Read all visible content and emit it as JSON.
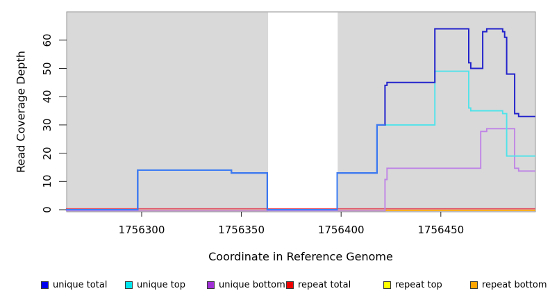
{
  "chart_data": {
    "type": "step-line",
    "title": "",
    "xlabel": "Coordinate in Reference Genome",
    "ylabel": "Read Coverage Depth",
    "x_ticks": [
      "1756300",
      "1756350",
      "1756400",
      "1756450"
    ],
    "x_tick_values": [
      1756300,
      1756350,
      1756400,
      1756450
    ],
    "y_ticks": [
      "0",
      "10",
      "20",
      "30",
      "40",
      "50",
      "60"
    ],
    "y_tick_values": [
      0,
      10,
      20,
      30,
      40,
      50,
      60
    ],
    "xlim": [
      1756262,
      1756497
    ],
    "ylim": [
      0,
      70
    ],
    "grid": false,
    "panel_bg": "#D9D9D9",
    "panel_border": "#969696",
    "gap_region": {
      "x_start": 1756363.4,
      "x_end": 1756398.3,
      "color": "#FFFFFF"
    },
    "series": [
      {
        "id": "unique_total",
        "name": "unique total",
        "line_color": "#2323CC",
        "steps": [
          [
            1756262,
            0
          ],
          [
            1756298,
            14
          ],
          [
            1756345,
            13
          ],
          [
            1756363,
            0
          ],
          [
            1756398,
            13
          ],
          [
            1756418,
            30
          ],
          [
            1756422,
            44
          ],
          [
            1756423,
            45
          ],
          [
            1756447,
            64
          ],
          [
            1756464,
            52
          ],
          [
            1756465,
            50
          ],
          [
            1756471,
            63
          ],
          [
            1756473,
            64
          ],
          [
            1756481,
            63
          ],
          [
            1756482,
            61
          ],
          [
            1756483,
            48
          ],
          [
            1756487,
            34
          ],
          [
            1756489,
            33
          ]
        ]
      },
      {
        "id": "unique_top",
        "name": "unique top",
        "line_color": "#4FE3EA",
        "steps": [
          [
            1756262,
            0
          ],
          [
            1756298,
            14
          ],
          [
            1756345,
            13
          ],
          [
            1756363,
            0
          ],
          [
            1756398,
            13
          ],
          [
            1756418,
            30
          ],
          [
            1756447,
            49
          ],
          [
            1756464,
            36
          ],
          [
            1756465,
            35
          ],
          [
            1756481,
            34
          ],
          [
            1756483,
            19
          ]
        ]
      },
      {
        "id": "unique_bottom",
        "name": "unique bottom",
        "line_color": "#BF84E6",
        "steps": [
          [
            1756262,
            0
          ],
          [
            1756422,
            11
          ],
          [
            1756423,
            15
          ],
          [
            1756470,
            28
          ],
          [
            1756473,
            29
          ],
          [
            1756487,
            15
          ],
          [
            1756489,
            14
          ]
        ]
      },
      {
        "id": "repeat_total",
        "name": "repeat total",
        "line_color": "#E0485C",
        "steps": [
          [
            1756262,
            0
          ]
        ]
      },
      {
        "id": "repeat_top",
        "name": "repeat top",
        "line_color": "#F5F500",
        "steps": [
          [
            1756262,
            0
          ]
        ]
      },
      {
        "id": "repeat_bottom",
        "name": "repeat bottom",
        "line_color": "#FFA50A",
        "steps": [
          [
            1756422,
            0
          ]
        ]
      }
    ],
    "legend": {
      "position": "bottom",
      "items": [
        {
          "label": "unique total",
          "swatch_color": "#0000EE"
        },
        {
          "label": "unique top",
          "swatch_color": "#00E5EE"
        },
        {
          "label": "unique bottom",
          "swatch_color": "#A02FD6"
        },
        {
          "label": "repeat total",
          "swatch_color": "#EE0000"
        },
        {
          "label": "repeat top",
          "swatch_color": "#FFFF00"
        },
        {
          "label": "repeat bottom",
          "swatch_color": "#FFA500"
        }
      ]
    }
  }
}
